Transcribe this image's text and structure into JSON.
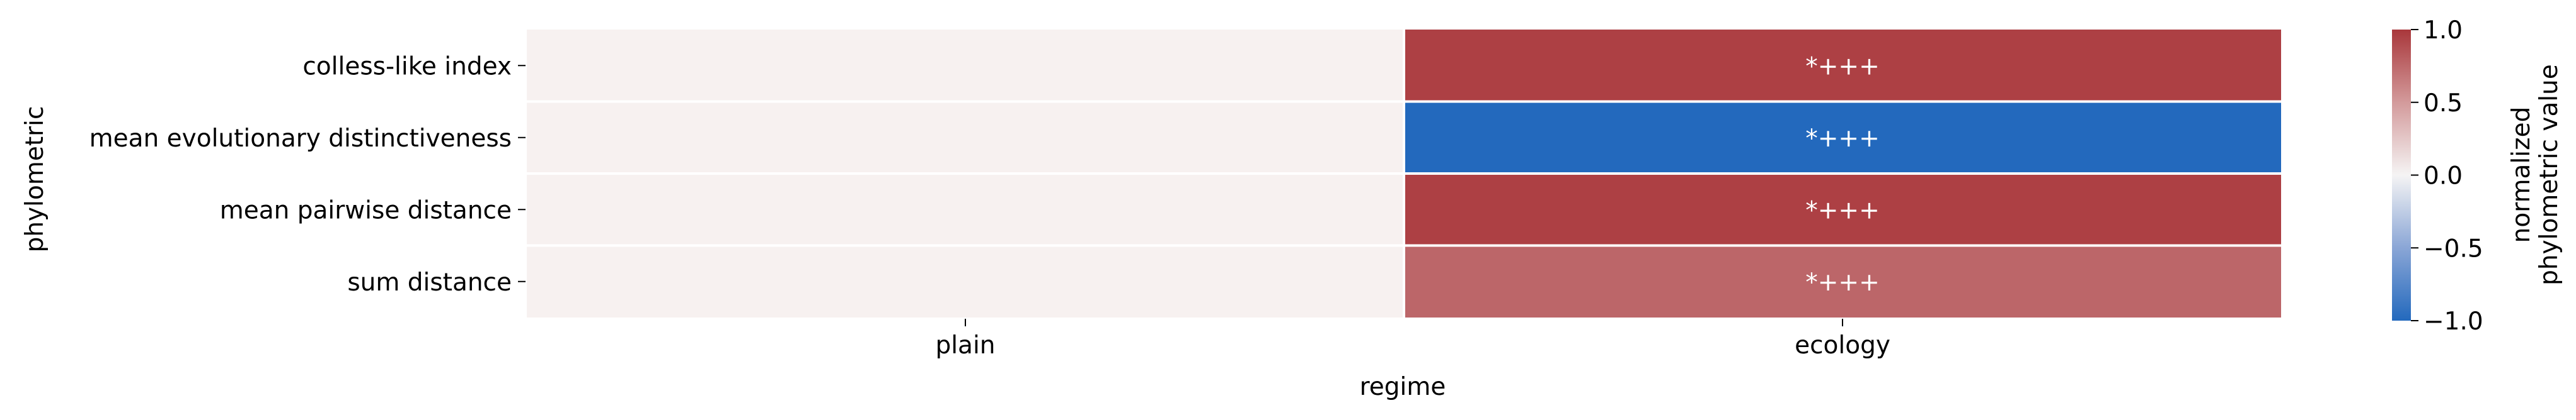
{
  "chart_data": {
    "type": "heatmap",
    "title": "",
    "xlabel": "regime",
    "ylabel": "phylometric",
    "x_categories": [
      "plain",
      "ecology"
    ],
    "y_categories": [
      "colless-like index",
      "mean evolutionary distinctiveness",
      "mean pairwise distance",
      "sum distance"
    ],
    "values": [
      [
        0.0,
        0.95
      ],
      [
        0.0,
        -1.0
      ],
      [
        0.0,
        0.95
      ],
      [
        0.0,
        0.75
      ]
    ],
    "annotations": [
      [
        "",
        "*+++"
      ],
      [
        "",
        "*+++"
      ],
      [
        "",
        "*+++"
      ],
      [
        "",
        "*+++"
      ]
    ],
    "colorbar": {
      "label_lines": [
        "normalized",
        "phylometric value"
      ],
      "vmin": -1.0,
      "vmax": 1.0,
      "ticks": [
        {
          "value": 1.0,
          "label": "1.0"
        },
        {
          "value": 0.5,
          "label": "0.5"
        },
        {
          "value": 0.0,
          "label": "0.0"
        },
        {
          "value": -0.5,
          "label": "−0.5"
        },
        {
          "value": -1.0,
          "label": "−1.0"
        }
      ],
      "colors": {
        "low": "#2369bd",
        "mid": "#f5f4f4",
        "high": "#a9373b",
        "zero_cell": "#f7f1f0"
      }
    },
    "grid": false,
    "legend": "right"
  }
}
